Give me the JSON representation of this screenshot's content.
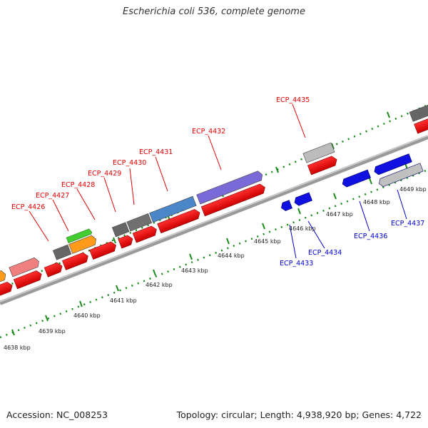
{
  "title": "Escherichia coli 536, complete genome",
  "footer": {
    "accession": "Accession: NC_008253",
    "summary": "Topology: circular; Length: 4,938,920 bp; Genes: 4,722"
  },
  "kbp_labels": [
    "4638 kbp",
    "4639 kbp",
    "4640 kbp",
    "4641 kbp",
    "4642 kbp",
    "4643 kbp",
    "4644 kbp",
    "4645 kbp",
    "4646 kbp",
    "4647 kbp",
    "4648 kbp",
    "4649 kbp"
  ],
  "forward_genes": [
    "ECP_4426",
    "ECP_4427",
    "ECP_4428",
    "ECP_4429",
    "ECP_4430",
    "ECP_4431",
    "ECP_4432",
    "ECP_4435"
  ],
  "reverse_genes": [
    "ECP_4433",
    "ECP_4434",
    "ECP_4436",
    "ECP_4437"
  ],
  "colors": {
    "forward": "#ff0000",
    "reverse": "#0000ff",
    "label_forward": "#e00000",
    "label_reverse": "#0000c8"
  }
}
